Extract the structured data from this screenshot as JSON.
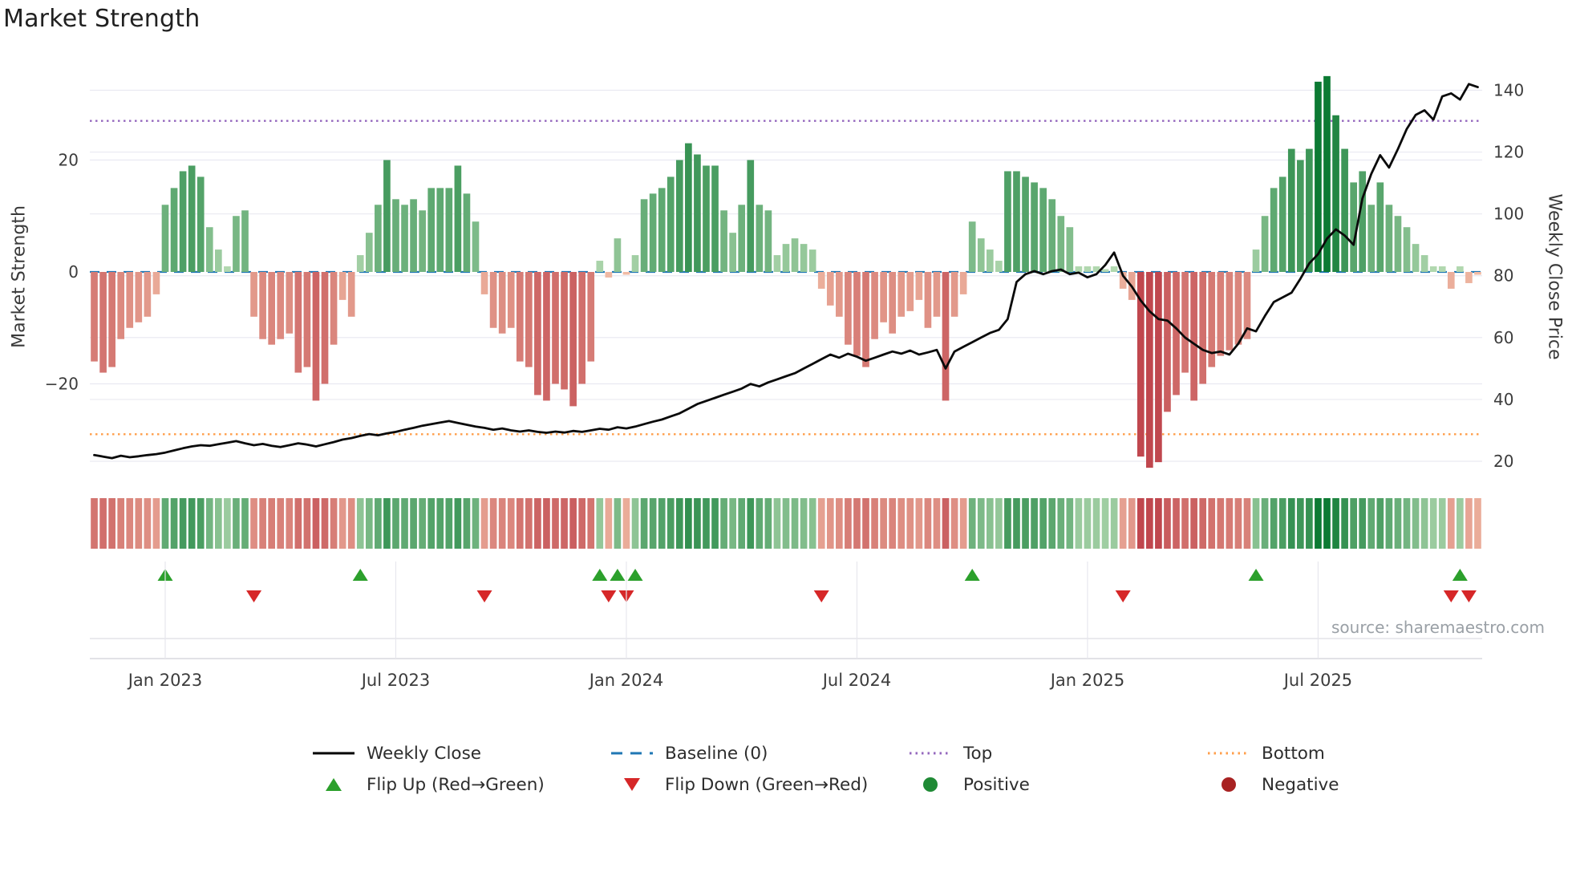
{
  "page": {
    "title": "Market Strength"
  },
  "chart_data": {
    "type": "bar+line",
    "title": "Market Strength",
    "ylabel_left": "Market Strength",
    "ylabel_right": "Weekly Close Price",
    "source": "source: sharemaestro.com",
    "grid": true,
    "left_axis": {
      "ticks": [
        20,
        0,
        -20
      ],
      "range": [
        -40,
        37
      ]
    },
    "right_axis": {
      "ticks": [
        140,
        120,
        100,
        80,
        60,
        40,
        20
      ],
      "range": [
        16,
        148
      ]
    },
    "x_ticks": [
      {
        "label": "Jan 2023",
        "week": 8
      },
      {
        "label": "Jul 2023",
        "week": 34
      },
      {
        "label": "Jan 2024",
        "week": 60
      },
      {
        "label": "Jul 2024",
        "week": 86
      },
      {
        "label": "Jan 2025",
        "week": 112
      },
      {
        "label": "Jul 2025",
        "week": 138
      }
    ],
    "reference_lines": {
      "baseline": {
        "label": "Baseline (0)",
        "value": 0,
        "color": "#1f77b4",
        "style": "dashed"
      },
      "top": {
        "label": "Top",
        "value": 27,
        "color": "#9467bd",
        "style": "dotted"
      },
      "bottom": {
        "label": "Bottom",
        "value": -29,
        "color": "#ff9e4a",
        "style": "dotted"
      }
    },
    "series": [
      {
        "name": "Market Strength",
        "type": "bar",
        "axis": "left",
        "values": [
          -16,
          -18,
          -17,
          -12,
          -10,
          -9,
          -8,
          -4,
          12,
          15,
          18,
          19,
          17,
          8,
          4,
          1,
          10,
          11,
          -8,
          -12,
          -13,
          -12,
          -11,
          -18,
          -17,
          -23,
          -20,
          -13,
          -5,
          -8,
          3,
          7,
          12,
          20,
          13,
          12,
          13,
          11,
          15,
          15,
          15,
          19,
          14,
          9,
          -4,
          -10,
          -11,
          -10,
          -16,
          -17,
          -22,
          -23,
          -20,
          -21,
          -24,
          -20,
          -16,
          2,
          -1,
          6,
          -0.5,
          3,
          13,
          14,
          15,
          17,
          20,
          23,
          21,
          19,
          19,
          11,
          7,
          12,
          20,
          12,
          11,
          3,
          5,
          6,
          5,
          4,
          -3,
          -6,
          -8,
          -13,
          -15,
          -17,
          -12,
          -9,
          -11,
          -8,
          -7,
          -5,
          -10,
          -8,
          -23,
          -8,
          -4,
          9,
          6,
          4,
          2,
          18,
          18,
          17,
          16,
          15,
          13,
          10,
          8,
          1,
          1,
          1,
          0.5,
          1,
          -3,
          -5,
          -33,
          -35,
          -34,
          -25,
          -22,
          -18,
          -23,
          -20,
          -17,
          -15,
          -14,
          -13,
          -12,
          4,
          10,
          15,
          17,
          22,
          20,
          22,
          34,
          35,
          28,
          22,
          16,
          18,
          12,
          16,
          12,
          10,
          8,
          5,
          3,
          1,
          1,
          -3,
          1,
          -2,
          -0.5
        ]
      },
      {
        "name": "Weekly Close",
        "type": "line",
        "axis": "right",
        "color": "#000000",
        "values": [
          22,
          21.5,
          21,
          21.8,
          21.3,
          21.6,
          22,
          22.3,
          22.8,
          23.5,
          24.2,
          24.8,
          25.2,
          25,
          25.5,
          26,
          26.5,
          25.8,
          25.2,
          25.6,
          25,
          24.6,
          25.2,
          25.8,
          25.4,
          24.8,
          25.5,
          26.2,
          27,
          27.5,
          28.2,
          28.8,
          28.4,
          29,
          29.5,
          30.2,
          30.8,
          31.5,
          32,
          32.5,
          33,
          32.4,
          31.8,
          31.2,
          30.8,
          30.2,
          30.6,
          30,
          29.6,
          30,
          29.5,
          29.2,
          29.6,
          29.3,
          29.8,
          29.5,
          30,
          30.5,
          30.2,
          31,
          30.6,
          31.2,
          32,
          32.8,
          33.5,
          34.5,
          35.5,
          37,
          38.5,
          39.5,
          40.5,
          41.5,
          42.5,
          43.5,
          45,
          44.2,
          45.5,
          46.5,
          47.5,
          48.5,
          50,
          51.5,
          53,
          54.5,
          53.5,
          54.8,
          53.8,
          52.5,
          53.5,
          54.5,
          55.5,
          54.8,
          55.8,
          54.5,
          55.2,
          56,
          50,
          55.5,
          57,
          58.5,
          60,
          61.5,
          62.5,
          66,
          78,
          80.5,
          81.5,
          80.5,
          81.5,
          82,
          80.5,
          81,
          79.5,
          80.5,
          83.5,
          87.5,
          80,
          76.5,
          72,
          68.5,
          66,
          65.5,
          63,
          60,
          58,
          56,
          55,
          55.5,
          54.5,
          58,
          63,
          62,
          67,
          71.5,
          73,
          74.5,
          79,
          84,
          87,
          92,
          95,
          93,
          90,
          105,
          113,
          119,
          115,
          121,
          127.5,
          132,
          133.5,
          130.5,
          138,
          139,
          137,
          142,
          141
        ]
      }
    ],
    "heatmap": {
      "from": "Market Strength",
      "note": "weekly strip colored by strength value"
    },
    "markers": {
      "flip_up_weeks": [
        8,
        30,
        57,
        59,
        61,
        99,
        131,
        154
      ],
      "flip_down_weeks": [
        18,
        44,
        58,
        60,
        82,
        116,
        153,
        155
      ]
    },
    "colors": {
      "bar_positive_light": "#cfe9c6",
      "bar_positive_dark": "#0c7a33",
      "bar_negative_light": "#f8cdb2",
      "bar_negative_dark": "#c0474e",
      "price_line": "#0a0a0a",
      "baseline": "#1f77b4",
      "top_line": "#9467bd",
      "bottom_line": "#ff9e4a",
      "flip_up": "#2ca02c",
      "flip_down": "#d62728",
      "positive_dot": "#1f8a35",
      "negative_dot": "#a82222",
      "grid": "#e9e9f1",
      "axis_text": "#3c3c3c"
    }
  },
  "legend": {
    "items": [
      {
        "label": "Weekly Close",
        "symbol": "solid-line",
        "color": "#000000"
      },
      {
        "label": "Baseline (0)",
        "symbol": "dashed-line",
        "color": "#1f77b4"
      },
      {
        "label": "Top",
        "symbol": "dotted-line",
        "color": "#9467bd"
      },
      {
        "label": "Bottom",
        "symbol": "dotted-line",
        "color": "#ff9e4a"
      },
      {
        "label": "Flip Up (Red→Green)",
        "symbol": "triangle-up",
        "color": "#2ca02c"
      },
      {
        "label": "Flip Down (Green→Red)",
        "symbol": "triangle-down",
        "color": "#d62728"
      },
      {
        "label": "Positive",
        "symbol": "circle",
        "color": "#1f8a35"
      },
      {
        "label": "Negative",
        "symbol": "circle",
        "color": "#a82222"
      }
    ]
  }
}
